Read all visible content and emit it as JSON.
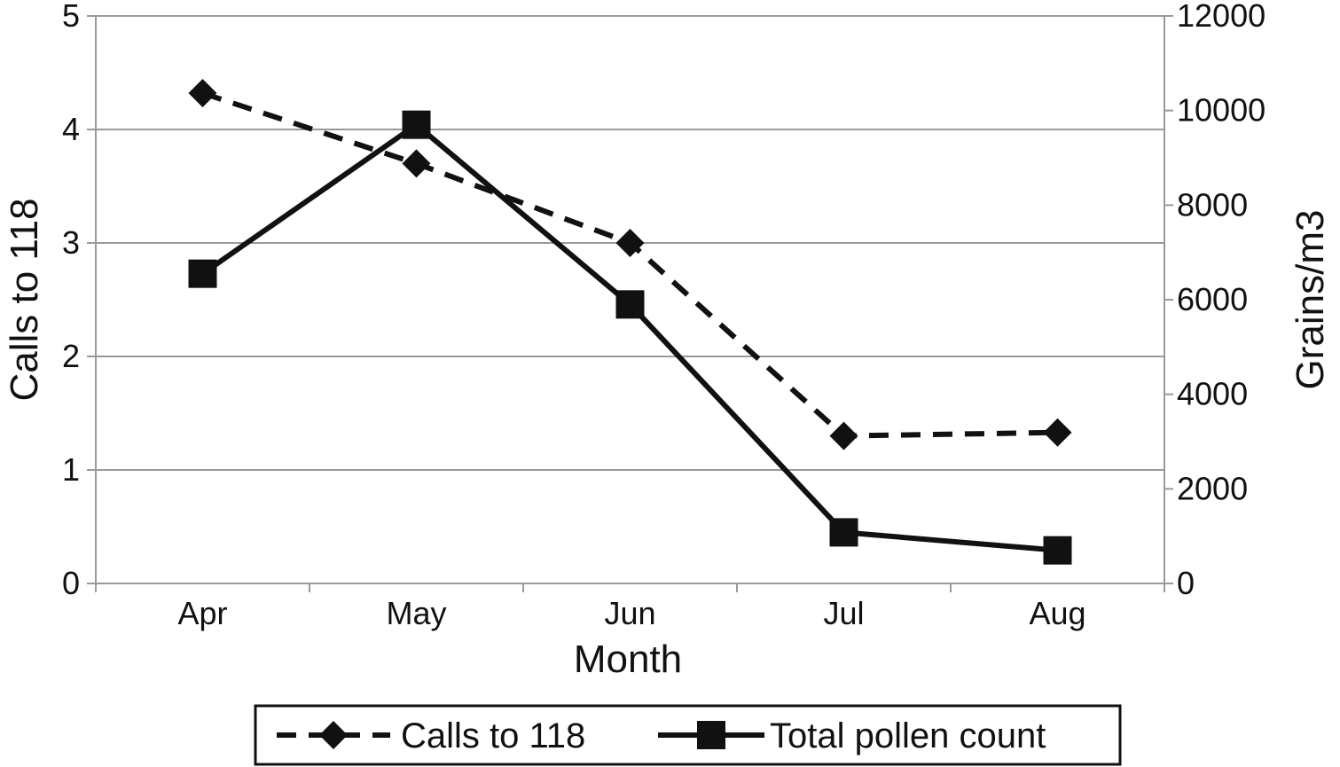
{
  "chart_data": {
    "type": "line",
    "categories": [
      "Apr",
      "May",
      "Jun",
      "Jul",
      "Aug"
    ],
    "xlabel": "Month",
    "ylabel_left": "Calls to 118",
    "ylabel_right": "Grains/m3",
    "ylim_left": [
      0,
      5
    ],
    "ylim_right": [
      0,
      12000
    ],
    "yticks_left": [
      "0",
      "1",
      "2",
      "3",
      "4",
      "5"
    ],
    "yticks_right": [
      "0",
      "2000",
      "4000",
      "6000",
      "8000",
      "10000",
      "12000"
    ],
    "grid": true,
    "legend_position": "bottom",
    "series": [
      {
        "name": "Calls to 118",
        "axis": "left",
        "style": "dashed",
        "marker": "diamond",
        "color": "#111111",
        "values": [
          4.32,
          3.7,
          3.0,
          1.3,
          1.33
        ]
      },
      {
        "name": "Total pollen count",
        "axis": "right",
        "style": "solid",
        "marker": "square",
        "color": "#111111",
        "values": [
          6550,
          9700,
          5900,
          1080,
          700
        ]
      }
    ]
  }
}
